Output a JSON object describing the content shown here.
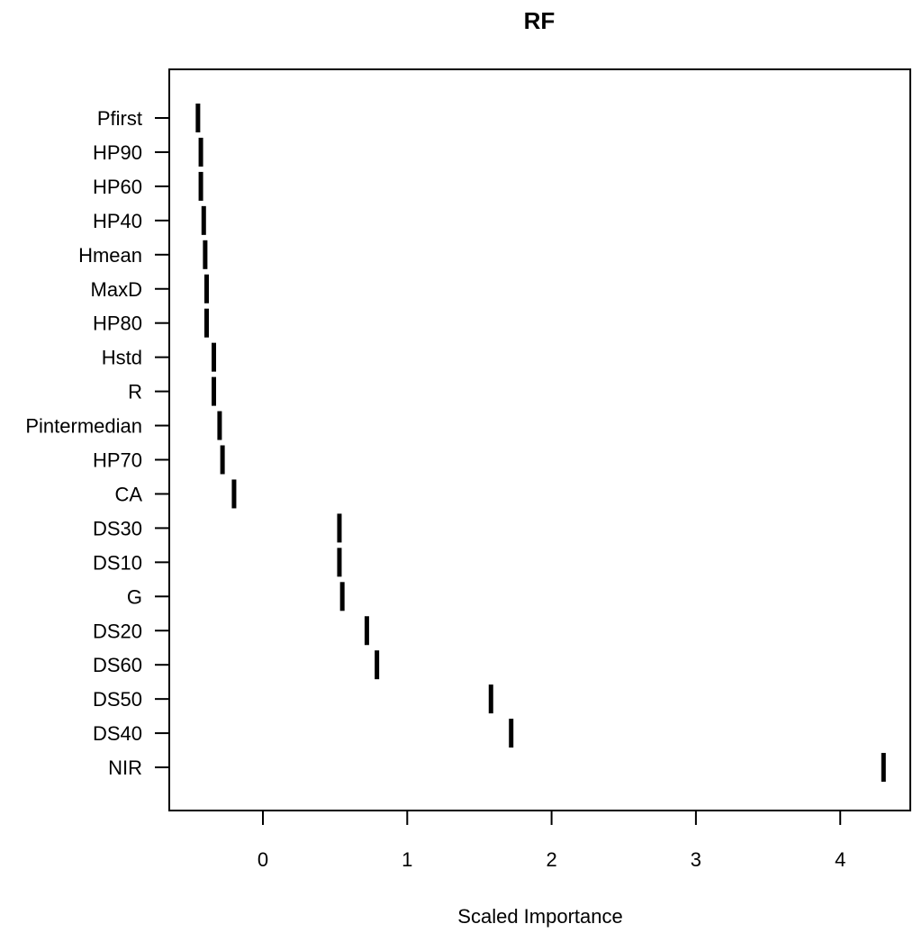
{
  "chart_data": {
    "type": "scatter",
    "title": "RF",
    "xlabel": "Scaled Importance",
    "ylabel": "",
    "xlim": [
      -0.65,
      4.5
    ],
    "xticks": [
      "0",
      "1",
      "2",
      "3",
      "4"
    ],
    "grid": false,
    "legend": "none",
    "categories": [
      "Pfirst",
      "HP90",
      "HP60",
      "HP40",
      "Hmean",
      "MaxD",
      "HP80",
      "Hstd",
      "R",
      "Pintermedian",
      "HP70",
      "CA",
      "DS30",
      "DS10",
      "G",
      "DS20",
      "DS60",
      "DS50",
      "DS40",
      "NIR"
    ],
    "values": [
      -0.45,
      -0.43,
      -0.43,
      -0.41,
      -0.4,
      -0.39,
      -0.39,
      -0.34,
      -0.34,
      -0.3,
      -0.28,
      -0.2,
      0.53,
      0.53,
      0.55,
      0.72,
      0.79,
      1.58,
      1.72,
      4.3
    ],
    "marker_color": "#000000"
  }
}
